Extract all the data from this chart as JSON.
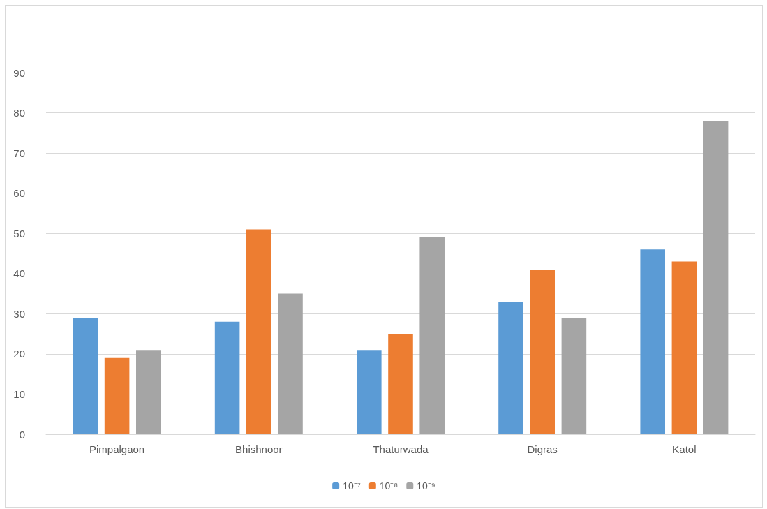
{
  "chart_data": {
    "type": "bar",
    "categories": [
      "Pimpalgaon",
      "Bhishnoor",
      "Thaturwada",
      "Digras",
      "Katol"
    ],
    "series": [
      {
        "name": "10⁻⁷",
        "color": "#5b9bd5",
        "values": [
          29,
          28,
          21,
          33,
          46
        ]
      },
      {
        "name": "10⁻⁸",
        "color": "#ed7d31",
        "values": [
          19,
          51,
          25,
          41,
          43
        ]
      },
      {
        "name": "10⁻⁹",
        "color": "#a5a5a5",
        "values": [
          21,
          35,
          49,
          29,
          78
        ]
      }
    ],
    "ylim": [
      0,
      90
    ],
    "yticks": [
      0,
      10,
      20,
      30,
      40,
      50,
      60,
      70,
      80,
      90
    ],
    "grid": "y",
    "legend": "bottom"
  }
}
